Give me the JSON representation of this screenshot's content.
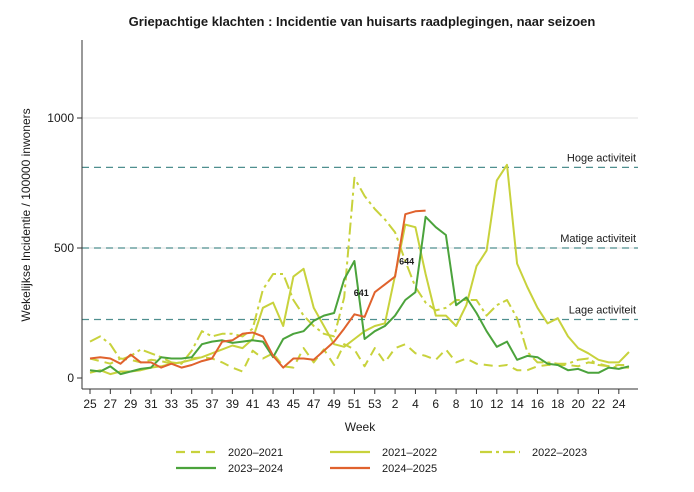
{
  "chart_data": {
    "type": "line",
    "title": "Griepachtige klachten : Incidentie van huisarts raadplegingen, naar seizoen",
    "xlabel": "Week",
    "ylabel": "Wekelijkse Incidentie / 100000 inwoners",
    "ylim": [
      0,
      1300
    ],
    "yticks": [
      0,
      500,
      1000
    ],
    "x_tick_labels": [
      "25",
      "27",
      "29",
      "31",
      "33",
      "35",
      "37",
      "39",
      "41",
      "43",
      "45",
      "47",
      "49",
      "51",
      "53",
      "2",
      "4",
      "6",
      "8",
      "10",
      "12",
      "14",
      "16",
      "18",
      "20",
      "22",
      "24"
    ],
    "grid": "horizontal",
    "legend_position": "bottom",
    "reference_lines": [
      {
        "label": "Hoge activiteit",
        "value": 810
      },
      {
        "label": "Matige activiteit",
        "value": 500
      },
      {
        "label": "Lage activiteit",
        "value": 225
      }
    ],
    "annotations": [
      {
        "text": "641",
        "series": "2024–2025",
        "x": 53
      },
      {
        "text": "644",
        "series": "2024–2025",
        "x": 2
      }
    ],
    "series": [
      {
        "name": "2020–2021",
        "color": "#c8d23c",
        "dash": "9,6",
        "values": [
          75,
          65,
          55,
          75,
          70,
          60,
          70,
          65,
          55,
          60,
          75,
          80,
          75,
          60,
          40,
          25,
          105,
          75,
          95,
          45,
          40,
          115,
          60,
          110,
          50,
          130,
          110,
          45,
          115,
          60,
          115,
          130,
          95,
          85,
          70,
          110,
          60,
          75,
          55,
          50,
          45,
          50,
          30,
          30,
          45,
          50,
          50,
          50,
          45,
          60,
          55,
          45,
          50,
          50
        ]
      },
      {
        "name": "2021–2022",
        "color": "#c8d23c",
        "dash": "",
        "values": [
          20,
          30,
          15,
          25,
          25,
          30,
          40,
          45,
          55,
          60,
          70,
          80,
          95,
          110,
          125,
          115,
          150,
          270,
          290,
          200,
          390,
          420,
          270,
          200,
          130,
          120,
          150,
          180,
          200,
          210,
          395,
          590,
          580,
          400,
          240,
          240,
          200,
          280,
          430,
          490,
          760,
          820,
          440,
          350,
          270,
          210,
          230,
          160,
          115,
          95,
          70,
          60,
          60,
          100
        ]
      },
      {
        "name": "2022–2023",
        "color": "#c8d23c",
        "dash": "12,4,3,4",
        "values": [
          140,
          160,
          130,
          70,
          85,
          110,
          95,
          80,
          60,
          55,
          105,
          180,
          160,
          170,
          170,
          160,
          190,
          340,
          400,
          400,
          300,
          240,
          200,
          170,
          160,
          310,
          770,
          700,
          650,
          610,
          560,
          450,
          350,
          290,
          260,
          270,
          300,
          300,
          300,
          240,
          280,
          300,
          230,
          100,
          60,
          60,
          55,
          55,
          70,
          75,
          50,
          45,
          40,
          40
        ]
      },
      {
        "name": "2023–2024",
        "color": "#4ba33c",
        "dash": "",
        "values": [
          30,
          25,
          45,
          15,
          25,
          35,
          40,
          80,
          75,
          75,
          80,
          130,
          140,
          145,
          135,
          140,
          145,
          140,
          80,
          150,
          170,
          180,
          220,
          240,
          250,
          380,
          450,
          150,
          180,
          200,
          240,
          300,
          330,
          620,
          580,
          550,
          280,
          310,
          250,
          180,
          120,
          140,
          70,
          85,
          80,
          55,
          50,
          30,
          35,
          20,
          20,
          40,
          35,
          45
        ]
      },
      {
        "name": "2024–2025",
        "color": "#e0622d",
        "dash": "",
        "values": [
          75,
          80,
          75,
          55,
          90,
          60,
          60,
          40,
          55,
          40,
          50,
          65,
          75,
          140,
          145,
          170,
          175,
          160,
          85,
          40,
          75,
          75,
          70,
          105,
          140,
          190,
          245,
          235,
          330,
          360,
          390,
          630,
          641,
          644,
          null,
          null,
          null,
          null,
          null,
          null,
          null,
          null,
          null,
          null,
          null,
          null,
          null,
          null,
          null,
          null,
          null,
          null,
          null,
          null
        ]
      }
    ]
  }
}
